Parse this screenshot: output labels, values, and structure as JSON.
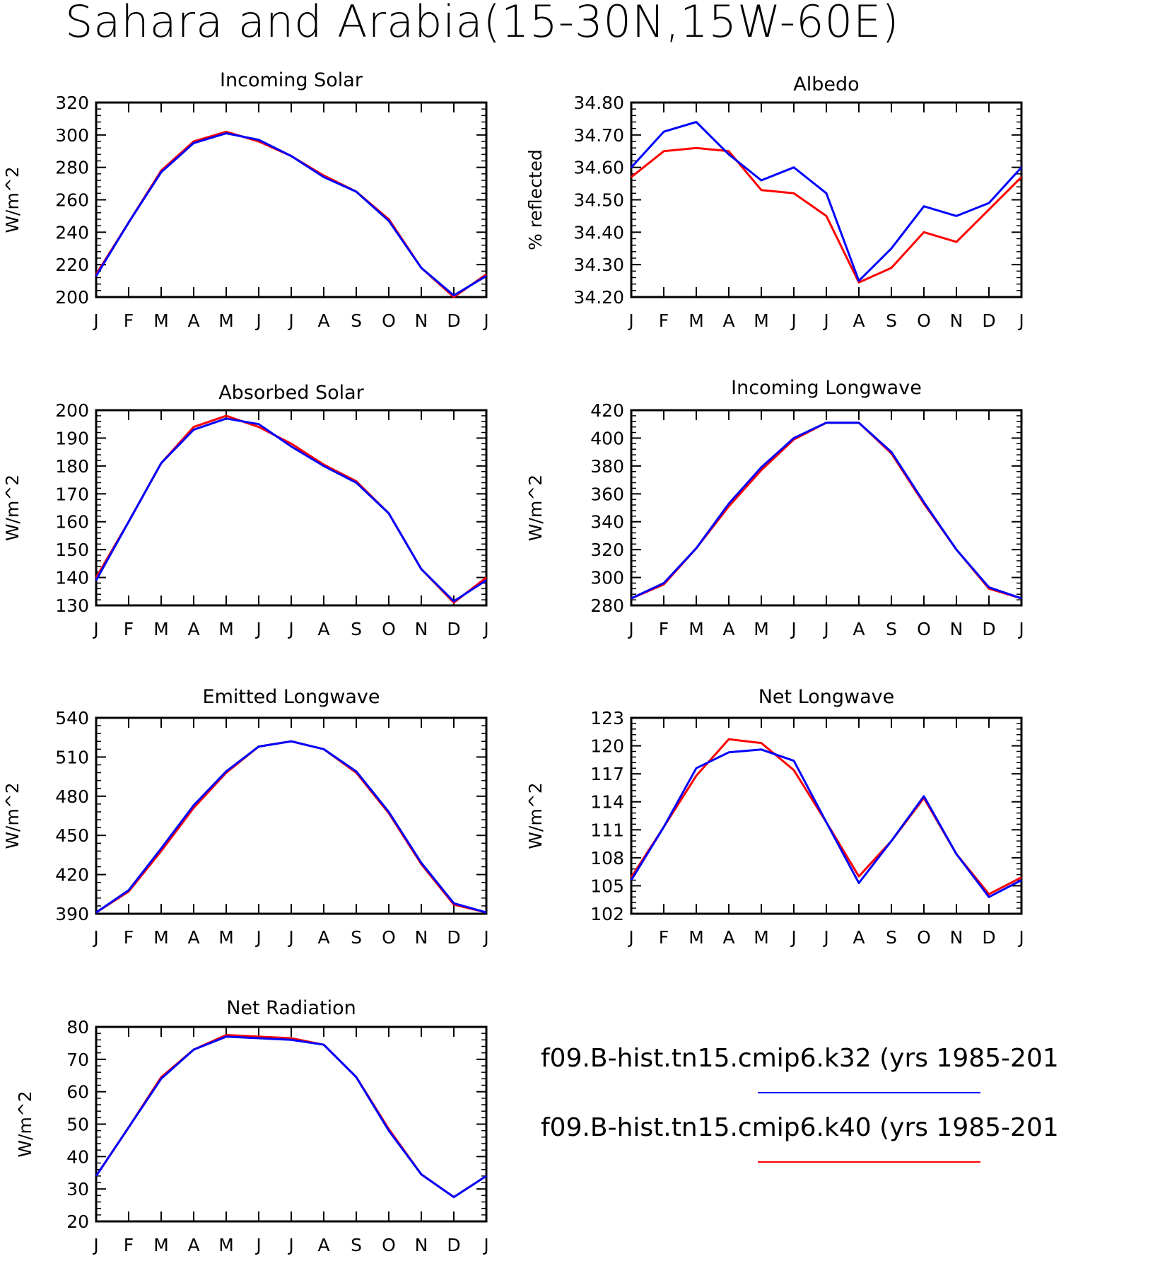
{
  "figure": {
    "title": "Sahara and Arabia(15-30N,15W-60E)"
  },
  "colors": {
    "series_k32": "#0000ff",
    "series_k40": "#ff0000",
    "axes": "#000000"
  },
  "legend": {
    "items": [
      {
        "label": "f09.B-hist.tn15.cmip6.k32 (yrs 1985-201",
        "color": "#0000ff"
      },
      {
        "label": "f09.B-hist.tn15.cmip6.k40 (yrs 1985-201",
        "color": "#ff0000"
      }
    ]
  },
  "chart_data": [
    {
      "type": "line",
      "title": "Incoming Solar",
      "ylabel": "W/m^2",
      "x": [
        "J",
        "F",
        "M",
        "A",
        "M",
        "J",
        "J",
        "A",
        "S",
        "O",
        "N",
        "D",
        "J"
      ],
      "ylim": [
        200,
        320
      ],
      "yticks": [
        "200",
        "220",
        "240",
        "260",
        "280",
        "300",
        "320"
      ],
      "series": [
        {
          "name": "f09.B-hist.tn15.cmip6.k32 (yrs 1985-201",
          "color": "#0000ff",
          "values": [
            213,
            246,
            277,
            295,
            301,
            297,
            287,
            274,
            265,
            247,
            218,
            201,
            213
          ]
        },
        {
          "name": "f09.B-hist.tn15.cmip6.k40 (yrs 1985-201",
          "color": "#ff0000",
          "values": [
            214,
            246,
            278,
            296,
            302,
            296,
            287,
            275,
            265,
            248,
            218,
            200,
            214
          ]
        }
      ]
    },
    {
      "type": "line",
      "title": "Albedo",
      "ylabel": "% reflected",
      "x": [
        "J",
        "F",
        "M",
        "A",
        "M",
        "J",
        "J",
        "A",
        "S",
        "O",
        "N",
        "D",
        "J"
      ],
      "ylim": [
        34.2,
        34.8
      ],
      "yticks": [
        "34.20",
        "34.30",
        "34.40",
        "34.50",
        "34.60",
        "34.70",
        "34.80"
      ],
      "series": [
        {
          "name": "f09.B-hist.tn15.cmip6.k32 (yrs 1985-201",
          "color": "#0000ff",
          "values": [
            34.6,
            34.71,
            34.74,
            34.64,
            34.56,
            34.6,
            34.52,
            34.25,
            34.35,
            34.48,
            34.45,
            34.49,
            34.6
          ]
        },
        {
          "name": "f09.B-hist.tn15.cmip6.k40 (yrs 1985-201",
          "color": "#ff0000",
          "values": [
            34.57,
            34.65,
            34.66,
            34.65,
            34.53,
            34.52,
            34.45,
            34.245,
            34.29,
            34.4,
            34.37,
            34.47,
            34.57
          ]
        }
      ]
    },
    {
      "type": "line",
      "title": "Absorbed Solar",
      "ylabel": "W/m^2",
      "x": [
        "J",
        "F",
        "M",
        "A",
        "M",
        "J",
        "J",
        "A",
        "S",
        "O",
        "N",
        "D",
        "J"
      ],
      "ylim": [
        130,
        200
      ],
      "yticks": [
        "130",
        "140",
        "150",
        "160",
        "170",
        "180",
        "190",
        "200"
      ],
      "series": [
        {
          "name": "f09.B-hist.tn15.cmip6.k32 (yrs 1985-201",
          "color": "#0000ff",
          "values": [
            139,
            160,
            181,
            193,
            197,
            195,
            187,
            180,
            174,
            163,
            143,
            131.5,
            139
          ]
        },
        {
          "name": "f09.B-hist.tn15.cmip6.k40 (yrs 1985-201",
          "color": "#ff0000",
          "values": [
            140,
            160,
            181,
            194,
            198,
            194,
            188,
            180.5,
            174.5,
            163,
            143,
            131,
            140
          ]
        }
      ]
    },
    {
      "type": "line",
      "title": "Incoming Longwave",
      "ylabel": "W/m^2",
      "x": [
        "J",
        "F",
        "M",
        "A",
        "M",
        "J",
        "J",
        "A",
        "S",
        "O",
        "N",
        "D",
        "J"
      ],
      "ylim": [
        280,
        420
      ],
      "yticks": [
        "280",
        "300",
        "320",
        "340",
        "360",
        "380",
        "400",
        "420"
      ],
      "series": [
        {
          "name": "f09.B-hist.tn15.cmip6.k32 (yrs 1985-201",
          "color": "#0000ff",
          "values": [
            285,
            296,
            321,
            353,
            379,
            400,
            411,
            411,
            390,
            354,
            320,
            293,
            285
          ]
        },
        {
          "name": "f09.B-hist.tn15.cmip6.k40 (yrs 1985-201",
          "color": "#ff0000",
          "values": [
            285,
            295,
            321,
            351,
            377,
            399,
            411,
            411,
            389,
            353,
            320,
            292,
            285
          ]
        }
      ]
    },
    {
      "type": "line",
      "title": "Emitted Longwave",
      "ylabel": "W/m^2",
      "x": [
        "J",
        "F",
        "M",
        "A",
        "M",
        "J",
        "J",
        "A",
        "S",
        "O",
        "N",
        "D",
        "J"
      ],
      "ylim": [
        390,
        540
      ],
      "yticks": [
        "390",
        "420",
        "450",
        "480",
        "510",
        "540"
      ],
      "series": [
        {
          "name": "f09.B-hist.tn15.cmip6.k32 (yrs 1985-201",
          "color": "#0000ff",
          "values": [
            391,
            408,
            440,
            473,
            499,
            518,
            522,
            516,
            499,
            468,
            429,
            398,
            391
          ]
        },
        {
          "name": "f09.B-hist.tn15.cmip6.k40 (yrs 1985-201",
          "color": "#ff0000",
          "values": [
            391,
            407,
            438,
            471,
            498,
            518,
            522,
            516,
            498,
            467,
            428,
            397,
            391
          ]
        }
      ]
    },
    {
      "type": "line",
      "title": "Net Longwave",
      "ylabel": "W/m^2",
      "x": [
        "J",
        "F",
        "M",
        "A",
        "M",
        "J",
        "J",
        "A",
        "S",
        "O",
        "N",
        "D",
        "J"
      ],
      "ylim": [
        102,
        123
      ],
      "yticks": [
        "102",
        "105",
        "108",
        "111",
        "114",
        "117",
        "120",
        "123"
      ],
      "series": [
        {
          "name": "f09.B-hist.tn15.cmip6.k32 (yrs 1985-201",
          "color": "#0000ff",
          "values": [
            105.6,
            111.3,
            117.6,
            119.3,
            119.6,
            118.4,
            111.8,
            105.3,
            109.8,
            114.6,
            108.4,
            103.8,
            105.6
          ]
        },
        {
          "name": "f09.B-hist.tn15.cmip6.k40 (yrs 1985-201",
          "color": "#ff0000",
          "values": [
            105.9,
            111.3,
            116.8,
            120.7,
            120.3,
            117.4,
            111.8,
            106.0,
            109.8,
            114.4,
            108.4,
            104.1,
            105.9
          ]
        }
      ]
    },
    {
      "type": "line",
      "title": "Net Radiation",
      "ylabel": "W/m^2",
      "x": [
        "J",
        "F",
        "M",
        "A",
        "M",
        "J",
        "J",
        "A",
        "S",
        "O",
        "N",
        "D",
        "J"
      ],
      "ylim": [
        20,
        80
      ],
      "yticks": [
        "20",
        "30",
        "40",
        "50",
        "60",
        "70",
        "80"
      ],
      "series": [
        {
          "name": "f09.B-hist.tn15.cmip6.k32 (yrs 1985-201",
          "color": "#0000ff",
          "values": [
            34,
            49,
            64,
            73,
            77,
            76.5,
            76,
            74.5,
            64.5,
            48,
            34.5,
            27.5,
            34
          ]
        },
        {
          "name": "f09.B-hist.tn15.cmip6.k40 (yrs 1985-201",
          "color": "#ff0000",
          "values": [
            34,
            49,
            64.5,
            73,
            77.5,
            77,
            76.5,
            74.5,
            64.5,
            48.5,
            34.5,
            27.5,
            34
          ]
        }
      ]
    }
  ]
}
